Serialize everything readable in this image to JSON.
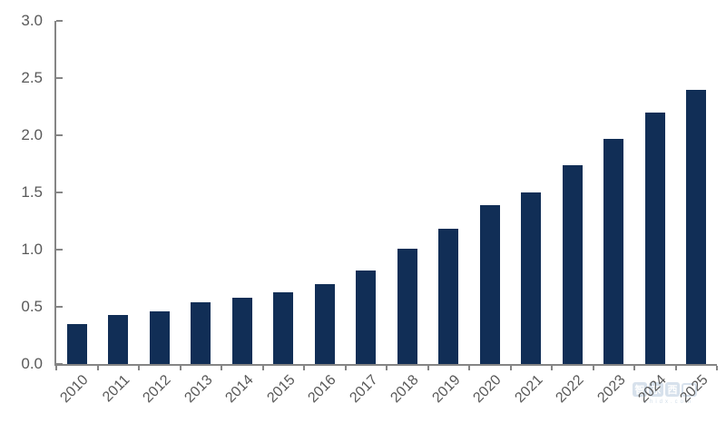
{
  "chart_data": {
    "type": "bar",
    "title": "",
    "xlabel": "",
    "ylabel": "",
    "categories": [
      "2010",
      "2011",
      "2012",
      "2013",
      "2014",
      "2015",
      "2016",
      "2017",
      "2018",
      "2019",
      "2020",
      "2021",
      "2022",
      "2023",
      "2024",
      "2025"
    ],
    "values": [
      0.35,
      0.43,
      0.46,
      0.54,
      0.58,
      0.63,
      0.7,
      0.82,
      1.01,
      1.18,
      1.39,
      1.5,
      1.74,
      1.97,
      2.2,
      2.4
    ],
    "ylim": [
      0,
      3.0
    ],
    "yticks": [
      0,
      0.5,
      1.0,
      1.5,
      2.0,
      2.5,
      3.0
    ],
    "ytick_labels": [
      "0.0",
      "0.5",
      "1.0",
      "1.5",
      "2.0",
      "2.5",
      "3.0"
    ],
    "grid": false,
    "legend": false,
    "bar_color": "#112e56",
    "axis_color": "#858585",
    "tick_label_color": "#595959"
  },
  "watermark": {
    "tiles": [
      "智",
      "东",
      "西"
    ],
    "subtext": "zhidx.com",
    "color": "#b7cadd"
  }
}
